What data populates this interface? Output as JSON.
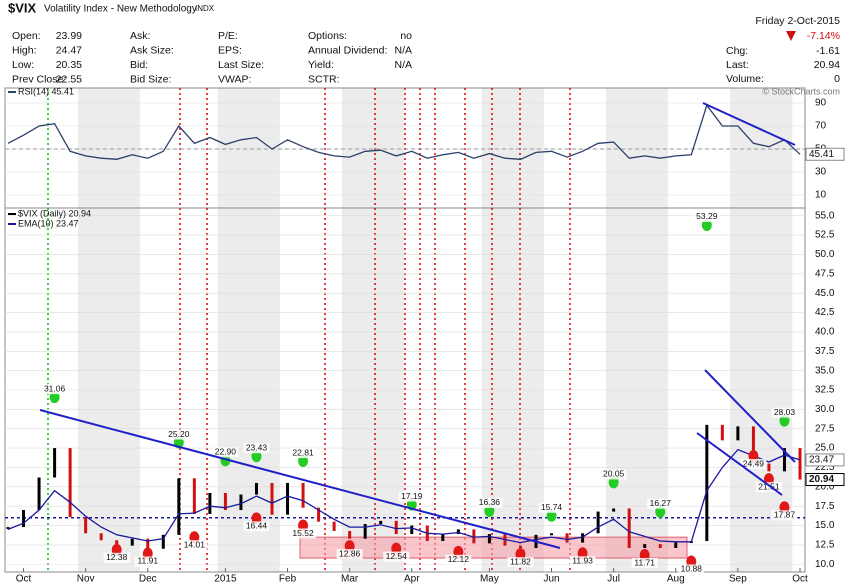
{
  "header": {
    "symbol": "$VIX",
    "name": "Volatility Index - New Methodology",
    "exchange": "INDX",
    "date": "Friday 2-Oct-2015",
    "change_pct": "-7.14%",
    "credit": "© StockCharts.com",
    "columns": [
      [
        {
          "label": "Open:",
          "value": "23.99"
        },
        {
          "label": "High:",
          "value": "24.47"
        },
        {
          "label": "Low:",
          "value": "20.35"
        },
        {
          "label": "Prev Close:",
          "value": "22.55"
        }
      ],
      [
        {
          "label": "Ask:"
        },
        {
          "label": "Ask Size:"
        },
        {
          "label": "Bid:"
        },
        {
          "label": "Bid Size:"
        }
      ],
      [
        {
          "label": "P/E:"
        },
        {
          "label": "EPS:"
        },
        {
          "label": "Last Size:"
        },
        {
          "label": "VWAP:"
        }
      ],
      [
        {
          "label": "Options:",
          "value": "no"
        },
        {
          "label": "Annual Dividend:",
          "value": "N/A"
        },
        {
          "label": "Yield:",
          "value": "N/A"
        },
        {
          "label": "SCTR:"
        }
      ]
    ],
    "right": [
      {
        "label": "Chg:",
        "value": "-1.61"
      },
      {
        "label": "Last:",
        "value": "20.94"
      },
      {
        "label": "Volume:",
        "value": "0"
      }
    ]
  },
  "chart_data": {
    "type": "line",
    "title": "$VIX",
    "categories": [
      null,
      "Oct",
      null,
      null,
      null,
      "Nov",
      null,
      null,
      null,
      "Dec",
      null,
      null,
      null,
      null,
      "2015",
      null,
      null,
      null,
      "Feb",
      null,
      null,
      null,
      "Mar",
      null,
      null,
      null,
      "Apr",
      null,
      null,
      null,
      null,
      "May",
      null,
      null,
      null,
      "Jun",
      null,
      null,
      null,
      "Jul",
      null,
      null,
      null,
      "Aug",
      null,
      null,
      null,
      "Sep",
      null,
      null,
      null,
      "Oct"
    ],
    "series": [
      {
        "name": "$VIX (Daily) 20.94",
        "color": "#000000",
        "down_color": "#d01010",
        "values": [
          14.8,
          17.0,
          21.2,
          25.0,
          16.1,
          14.0,
          13.1,
          12.4,
          13.3,
          12.0,
          13.8,
          21.1,
          16.5,
          19.2,
          17.0,
          19.0,
          20.5,
          16.4,
          20.5,
          17.3,
          15.5,
          14.3,
          13.3,
          15.2,
          15.6,
          13.9,
          15.0,
          13.0,
          13.9,
          14.5,
          12.7,
          13.9,
          12.4,
          12.1,
          13.8,
          14.0,
          12.8,
          14.0,
          16.8,
          17.2,
          12.1,
          12.6,
          12.1,
          12.8,
          13.0,
          28.0,
          26.0,
          27.8,
          23.0,
          22.0,
          25.0,
          20.94
        ]
      },
      {
        "name": "EMA(10) 23.47",
        "color": "#1a1aa0",
        "values": [
          14.5,
          15.3,
          17.0,
          19.5,
          18.0,
          16.2,
          14.8,
          13.8,
          13.4,
          13.0,
          13.3,
          16.5,
          16.6,
          17.5,
          17.3,
          17.8,
          18.8,
          17.9,
          18.8,
          18.2,
          17.0,
          15.8,
          14.8,
          14.8,
          15.1,
          14.6,
          14.7,
          14.0,
          13.9,
          14.1,
          13.5,
          13.6,
          13.2,
          12.8,
          13.2,
          13.5,
          13.2,
          13.5,
          14.8,
          15.8,
          14.2,
          13.6,
          13.0,
          12.9,
          12.9,
          19.5,
          22.5,
          24.8,
          24.0,
          23.2,
          24.1,
          23.47
        ]
      },
      {
        "name": "RSI(14) 45.41",
        "color": "#2b3f6b",
        "axis": "y2",
        "values": [
          55,
          62,
          70,
          72,
          48,
          44,
          42,
          41,
          45,
          42,
          48,
          70,
          55,
          60,
          54,
          58,
          60,
          50,
          58,
          52,
          47,
          44,
          43,
          48,
          49,
          44,
          48,
          42,
          45,
          47,
          42,
          46,
          42,
          41,
          47,
          48,
          43,
          48,
          55,
          56,
          42,
          44,
          42,
          44,
          45,
          88,
          70,
          70,
          55,
          52,
          58,
          45.41
        ]
      }
    ],
    "high_labels": [
      null,
      null,
      null,
      31.06,
      null,
      null,
      null,
      null,
      null,
      null,
      null,
      {
        "value": 25.2,
        "label": "25.20"
      },
      null,
      null,
      {
        "value": 22.9,
        "label": "22.90"
      },
      null,
      23.43,
      null,
      null,
      22.81,
      null,
      null,
      null,
      null,
      null,
      null,
      17.19,
      null,
      null,
      null,
      null,
      16.36,
      null,
      null,
      null,
      15.74,
      null,
      null,
      null,
      20.05,
      null,
      null,
      16.27,
      null,
      null,
      53.29,
      null,
      null,
      null,
      null,
      28.03,
      null
    ],
    "low_labels": [
      null,
      null,
      null,
      null,
      null,
      null,
      null,
      12.38,
      null,
      11.91,
      null,
      null,
      14.01,
      null,
      null,
      null,
      16.44,
      null,
      null,
      15.52,
      null,
      null,
      12.86,
      null,
      null,
      12.54,
      null,
      null,
      null,
      12.12,
      null,
      null,
      null,
      11.82,
      null,
      null,
      null,
      11.93,
      null,
      null,
      null,
      11.71,
      null,
      null,
      10.88,
      null,
      null,
      null,
      24.49,
      21.51,
      17.87,
      null
    ],
    "support_level": 16,
    "zone": [
      10.8,
      13.5
    ],
    "ylim": [
      9,
      56
    ],
    "yticks": [
      {
        "value": 10,
        "label": "10.0"
      },
      {
        "value": 12.5,
        "label": "12.5"
      },
      {
        "value": 15,
        "label": "15.0"
      },
      {
        "value": 17.5,
        "label": "17.5"
      },
      {
        "value": 20,
        "label": "20.0"
      },
      {
        "value": 22.5,
        "label": "22.5"
      },
      {
        "value": 25,
        "label": "25.0"
      },
      {
        "value": 27.5,
        "label": "27.5"
      },
      {
        "value": 30,
        "label": "30.0"
      },
      {
        "value": 32.5,
        "label": "32.5"
      },
      {
        "value": 35,
        "label": "35.0"
      },
      {
        "value": 37.5,
        "label": "37.5"
      },
      {
        "value": 40,
        "label": "40.0"
      },
      {
        "value": 42.5,
        "label": "42.5"
      },
      {
        "value": 45,
        "label": "45.0"
      },
      {
        "value": 47.5,
        "label": "47.5"
      },
      {
        "value": 50,
        "label": "50.0"
      },
      {
        "value": 52.5,
        "label": "52.5"
      },
      {
        "value": 55,
        "label": "55.0"
      }
    ],
    "y2lim": [
      0,
      100
    ],
    "y2ticks": [
      10,
      30,
      50,
      70,
      90
    ],
    "y2_midline": 50,
    "grid": true
  }
}
